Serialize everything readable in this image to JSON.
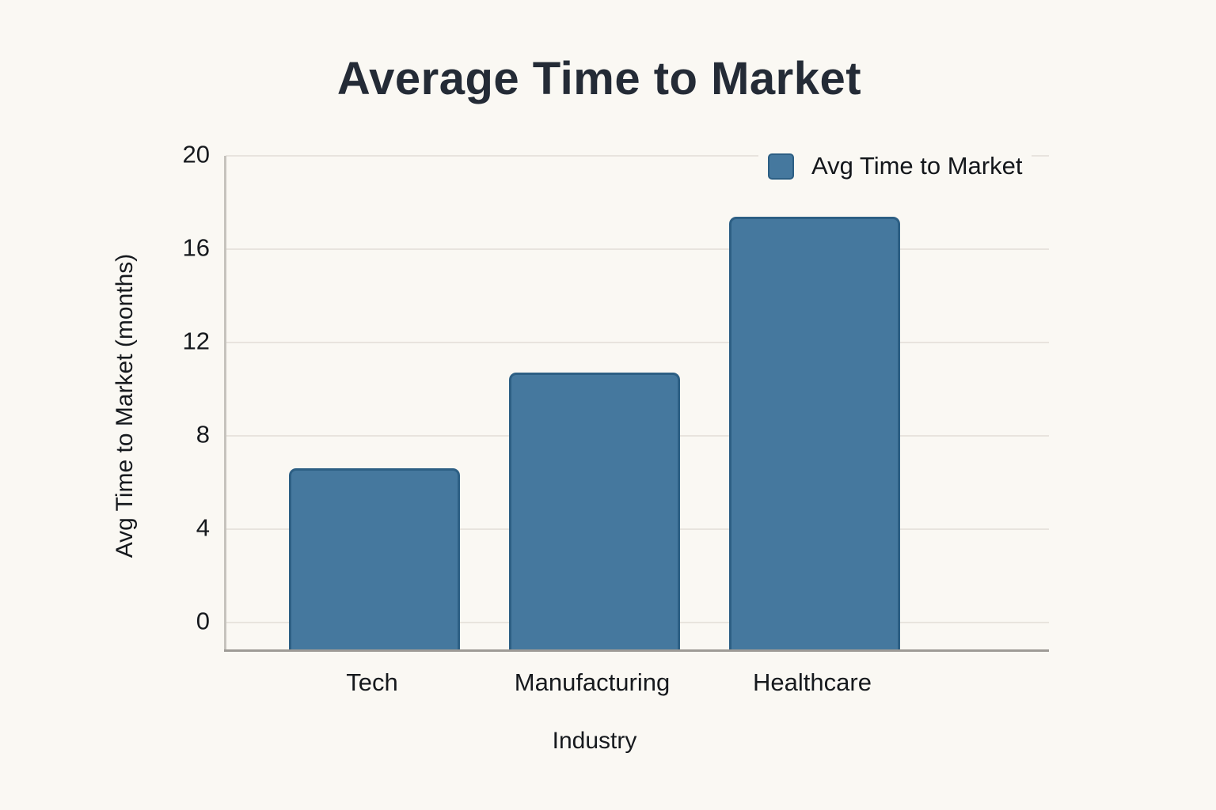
{
  "page": {
    "background_color": "#faf8f3",
    "text_color": "#16191d",
    "title_color": "#242b36"
  },
  "chart_data": {
    "type": "bar",
    "title": "Average Time to Market",
    "xlabel": "Industry",
    "ylabel": "Avg Time to Market (months)",
    "categories": [
      "Tech",
      "Manufacturing",
      "Healthcare"
    ],
    "series": [
      {
        "name": "Avg Time to Market",
        "values": [
          6.5,
          10.6,
          17.3
        ]
      }
    ],
    "ylim": [
      0,
      20
    ],
    "yticks": [
      0,
      4,
      8,
      12,
      16,
      20
    ],
    "grid": true,
    "legend_position": "top-right",
    "colors": {
      "bar_fill": "#45789e",
      "bar_border": "#2d5f84",
      "gridline": "#e8e4de",
      "axis_left": "#c6c3bd",
      "axis_bottom": "#9e9b96"
    }
  }
}
